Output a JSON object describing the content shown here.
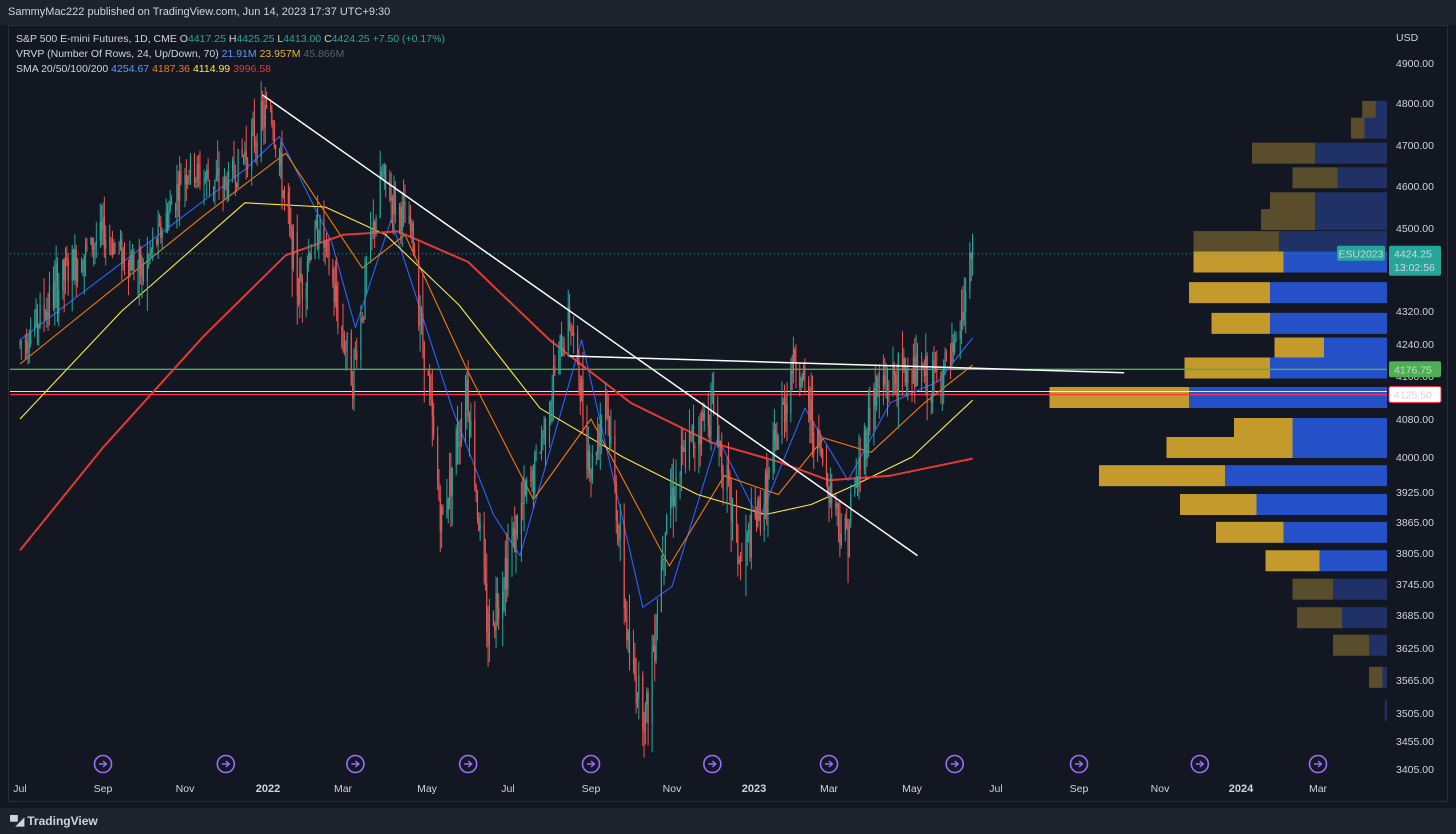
{
  "header": {
    "publisher": "SammyMac222 published on TradingView.com, Jun 14, 2023 17:37 UTC+9:30"
  },
  "legend": {
    "symbol": "S&P 500 E-mini Futures, 1D, CME",
    "o_label": "O",
    "o": "4417.25",
    "h_label": "H",
    "h": "4425.25",
    "l_label": "L",
    "l": "4413.00",
    "c_label": "C",
    "c": "4424.25",
    "change": "+7.50 (+0.17%)",
    "vrvp": "VRVP (Number Of Rows, 24, Up/Down, 70)",
    "vrvp_up": "21.91M",
    "vrvp_down": "23.957M",
    "vrvp_total": "45.866M",
    "sma": "SMA 20/50/100/200",
    "sma20": "4254.67",
    "sma50": "4187.36",
    "sma100": "4114.99",
    "sma200": "3996.58"
  },
  "footer": {
    "brand": "TradingView"
  },
  "chart_data": {
    "type": "line",
    "currency": "USD",
    "price_ticks": [
      4900,
      4800,
      4700,
      4600,
      4500,
      4400,
      4320,
      4240,
      4160,
      4080,
      4000,
      3925,
      3865,
      3805,
      3745,
      3685,
      3625,
      3565,
      3505,
      3455,
      3405
    ],
    "price_tick_labels": [
      "4900.00",
      "4800.00",
      "4700.00",
      "4600.00",
      "4500.00",
      "",
      "4320.00",
      "4240.00",
      "4160.00",
      "4080.00",
      "4000.00",
      "3925.00",
      "3865.00",
      "3805.00",
      "3745.00",
      "3685.00",
      "3625.00",
      "3565.00",
      "3505.00",
      "3455.00",
      "3405.00"
    ],
    "time_labels": [
      "Jul",
      "Sep",
      "Nov",
      "2022",
      "Mar",
      "May",
      "Jul",
      "Sep",
      "Nov",
      "2023",
      "Mar",
      "May",
      "Jul",
      "Sep",
      "Nov",
      "2024",
      "Mar"
    ],
    "last_price": {
      "symbol": "ESU2023",
      "value": "4424.25",
      "countdown": "13:02:56"
    },
    "levels": [
      {
        "value": "4176.75",
        "color": "#4caf50"
      },
      {
        "value": "4125.50",
        "color": "#f23645"
      }
    ],
    "price_series": [
      [
        "2021-07-01",
        4240
      ],
      [
        "2021-08-01",
        4370
      ],
      [
        "2021-09-01",
        4480
      ],
      [
        "2021-10-01",
        4380
      ],
      [
        "2021-11-01",
        4640
      ],
      [
        "2021-12-01",
        4600
      ],
      [
        "2022-01-03",
        4790
      ],
      [
        "2022-01-25",
        4350
      ],
      [
        "2022-02-10",
        4500
      ],
      [
        "2022-03-08",
        4170
      ],
      [
        "2022-03-29",
        4620
      ],
      [
        "2022-04-20",
        4480
      ],
      [
        "2022-05-12",
        3860
      ],
      [
        "2022-05-31",
        4150
      ],
      [
        "2022-06-16",
        3650
      ],
      [
        "2022-07-01",
        3800
      ],
      [
        "2022-07-20",
        3960
      ],
      [
        "2022-08-16",
        4310
      ],
      [
        "2022-09-01",
        3970
      ],
      [
        "2022-09-12",
        4140
      ],
      [
        "2022-09-30",
        3600
      ],
      [
        "2022-10-13",
        3500
      ],
      [
        "2022-10-28",
        3900
      ],
      [
        "2022-11-15",
        4030
      ],
      [
        "2022-12-01",
        4110
      ],
      [
        "2022-12-22",
        3780
      ],
      [
        "2023-01-10",
        3920
      ],
      [
        "2023-02-02",
        4210
      ],
      [
        "2023-02-24",
        3990
      ],
      [
        "2023-03-13",
        3830
      ],
      [
        "2023-04-03",
        4130
      ],
      [
        "2023-05-01",
        4180
      ],
      [
        "2023-05-15",
        4150
      ],
      [
        "2023-05-31",
        4200
      ],
      [
        "2023-06-14",
        4424.25
      ]
    ],
    "sma_series": [
      {
        "name": "SMA 20",
        "color": "#2962ff",
        "points": [
          [
            "2021-07-01",
            4250
          ],
          [
            "2021-12-15",
            4640
          ],
          [
            "2022-01-10",
            4720
          ],
          [
            "2022-02-20",
            4460
          ],
          [
            "2022-03-10",
            4280
          ],
          [
            "2022-04-05",
            4520
          ],
          [
            "2022-05-20",
            4100
          ],
          [
            "2022-06-20",
            3880
          ],
          [
            "2022-07-10",
            3800
          ],
          [
            "2022-08-25",
            4250
          ],
          [
            "2022-10-10",
            3700
          ],
          [
            "2022-11-01",
            3740
          ],
          [
            "2022-12-05",
            4040
          ],
          [
            "2023-01-05",
            3870
          ],
          [
            "2023-02-10",
            4100
          ],
          [
            "2023-03-15",
            3950
          ],
          [
            "2023-04-15",
            4110
          ],
          [
            "2023-05-20",
            4150
          ],
          [
            "2023-06-14",
            4254.67
          ]
        ]
      },
      {
        "name": "SMA 50",
        "color": "#f57c00",
        "points": [
          [
            "2021-07-01",
            4190
          ],
          [
            "2021-11-15",
            4530
          ],
          [
            "2022-01-15",
            4680
          ],
          [
            "2022-03-15",
            4390
          ],
          [
            "2022-04-15",
            4480
          ],
          [
            "2022-06-01",
            4170
          ],
          [
            "2022-07-20",
            3910
          ],
          [
            "2022-09-01",
            4080
          ],
          [
            "2022-10-30",
            3780
          ],
          [
            "2022-12-10",
            3960
          ],
          [
            "2023-01-20",
            3920
          ],
          [
            "2023-02-25",
            4040
          ],
          [
            "2023-04-01",
            4010
          ],
          [
            "2023-05-10",
            4110
          ],
          [
            "2023-06-14",
            4187.36
          ]
        ]
      },
      {
        "name": "SMA 100",
        "color": "#ffeb3b",
        "points": [
          [
            "2021-07-01",
            4080
          ],
          [
            "2021-09-15",
            4320
          ],
          [
            "2021-12-15",
            4560
          ],
          [
            "2022-02-15",
            4550
          ],
          [
            "2022-04-01",
            4480
          ],
          [
            "2022-05-25",
            4330
          ],
          [
            "2022-07-25",
            4100
          ],
          [
            "2022-09-25",
            4000
          ],
          [
            "2022-11-20",
            3920
          ],
          [
            "2023-01-10",
            3880
          ],
          [
            "2023-02-15",
            3900
          ],
          [
            "2023-03-20",
            3940
          ],
          [
            "2023-05-01",
            4000
          ],
          [
            "2023-06-14",
            4114.99
          ]
        ]
      },
      {
        "name": "SMA 200",
        "color": "#e53935",
        "points": [
          [
            "2021-07-01",
            3810
          ],
          [
            "2021-09-01",
            4020
          ],
          [
            "2021-11-15",
            4260
          ],
          [
            "2022-01-15",
            4420
          ],
          [
            "2022-03-01",
            4480
          ],
          [
            "2022-04-10",
            4490
          ],
          [
            "2022-06-01",
            4400
          ],
          [
            "2022-08-01",
            4250
          ],
          [
            "2022-10-01",
            4110
          ],
          [
            "2022-12-01",
            4030
          ],
          [
            "2023-01-20",
            3990
          ],
          [
            "2023-03-01",
            3950
          ],
          [
            "2023-04-15",
            3960
          ],
          [
            "2023-06-14",
            3996.58
          ]
        ]
      }
    ],
    "volume_profile": [
      {
        "price": 4780,
        "up": 0.3,
        "down": 0.25
      },
      {
        "price": 4740,
        "up": 0.3,
        "down": 0.5
      },
      {
        "price": 4680,
        "up": 1.4,
        "down": 1.6
      },
      {
        "price": 4620,
        "up": 1.0,
        "down": 1.1
      },
      {
        "price": 4560,
        "up": 1.0,
        "down": 1.6
      },
      {
        "price": 4520,
        "up": 1.2,
        "down": 1.6
      },
      {
        "price": 4460,
        "up": 1.9,
        "down": 2.4
      },
      {
        "price": 4400,
        "up": 2.0,
        "down": 2.3
      },
      {
        "price": 4350,
        "up": 1.8,
        "down": 2.6
      },
      {
        "price": 4290,
        "up": 1.3,
        "down": 2.6
      },
      {
        "price": 4230,
        "up": 1.1,
        "down": 1.4
      },
      {
        "price": 4180,
        "up": 1.9,
        "down": 2.6
      },
      {
        "price": 4120,
        "up": 3.1,
        "down": 4.4
      },
      {
        "price": 4060,
        "up": 1.3,
        "down": 2.1
      },
      {
        "price": 4020,
        "up": 2.8,
        "down": 2.1
      },
      {
        "price": 3960,
        "up": 2.8,
        "down": 3.6
      },
      {
        "price": 3900,
        "up": 1.7,
        "down": 2.9
      },
      {
        "price": 3845,
        "up": 1.5,
        "down": 2.3
      },
      {
        "price": 3790,
        "up": 1.2,
        "down": 1.5
      },
      {
        "price": 3735,
        "up": 0.9,
        "down": 1.2
      },
      {
        "price": 3680,
        "up": 1.0,
        "down": 1.0
      },
      {
        "price": 3630,
        "up": 0.8,
        "down": 0.4
      },
      {
        "price": 3570,
        "up": 0.3,
        "down": 0.1
      },
      {
        "price": 3510,
        "up": 0.0,
        "down": 0.05
      }
    ],
    "trendlines": [
      {
        "from": [
          "2021-12-28",
          4820
        ],
        "to": [
          "2023-05-05",
          3800
        ],
        "color": "#ffffff"
      },
      {
        "from": [
          "2022-08-16",
          4210
        ],
        "to": [
          "2023-10-05",
          4168
        ],
        "color": "#ffffff"
      }
    ],
    "event_markers": [
      "2021-09-01",
      "2021-12-01",
      "2022-03-10",
      "2022-06-01",
      "2022-09-01",
      "2022-12-01",
      "2023-03-01",
      "2023-06-01",
      "2023-09-01",
      "2023-12-01",
      "2024-03-01"
    ]
  }
}
